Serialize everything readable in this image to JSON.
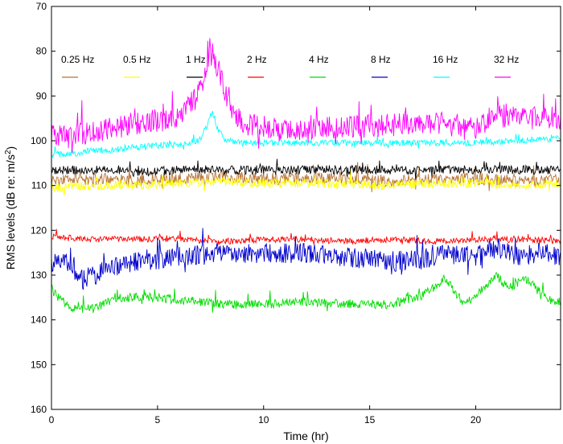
{
  "chart_data": {
    "type": "line",
    "title": "",
    "xlabel": "Time (hr)",
    "ylabel": "RMS levels (dB re: m/s",
    "ylabel_sup": "2",
    "ylabel_suffix": ")",
    "xlim": [
      0,
      24
    ],
    "ylim": [
      70,
      160
    ],
    "y_inverted": true,
    "grid": false,
    "legend_placement": "top, inside plot, single row",
    "xticks": [
      0,
      5,
      10,
      15,
      20
    ],
    "yticks": [
      70,
      80,
      90,
      100,
      110,
      120,
      130,
      140,
      150,
      160
    ],
    "series": [
      {
        "name": "0.25 Hz",
        "color": "#b87333",
        "x": [
          0,
          2,
          4,
          6,
          8,
          10,
          12,
          14,
          16,
          18,
          20,
          22,
          24
        ],
        "values": [
          109,
          108.5,
          109,
          108.5,
          108,
          108.5,
          108.5,
          108.5,
          109,
          108.5,
          108.5,
          109,
          108.5
        ],
        "noise": 1.3
      },
      {
        "name": "0.5 Hz",
        "color": "#ffff00",
        "x": [
          0,
          2,
          4,
          6,
          8,
          10,
          12,
          14,
          16,
          18,
          20,
          22,
          24
        ],
        "values": [
          110.5,
          110,
          110,
          109.5,
          109,
          109.5,
          109.5,
          109.5,
          110,
          109.5,
          109.5,
          110,
          109.5
        ],
        "noise": 1.0
      },
      {
        "name": "1 Hz",
        "color": "#000000",
        "x": [
          0,
          2,
          4,
          6,
          8,
          10,
          12,
          14,
          16,
          18,
          20,
          22,
          24
        ],
        "values": [
          106.5,
          106.5,
          107,
          106.5,
          106.5,
          106.5,
          106.5,
          106.5,
          106.5,
          106.5,
          106.5,
          106.5,
          106.5
        ],
        "noise": 1.0
      },
      {
        "name": "2 Hz",
        "color": "#ff0000",
        "x": [
          0,
          2,
          4,
          6,
          8,
          10,
          12,
          14,
          16,
          18,
          20,
          22,
          24
        ],
        "values": [
          121.5,
          122,
          122,
          122,
          122.5,
          122,
          122,
          122.5,
          122,
          122.5,
          122,
          122,
          122.5
        ],
        "noise": 0.7
      },
      {
        "name": "4 Hz",
        "color": "#00dd00",
        "x": [
          0,
          0.3,
          1,
          2,
          3,
          5,
          8,
          10,
          12,
          14,
          16,
          17.5,
          18.5,
          19.5,
          21,
          21.5,
          22.5,
          23.5,
          24
        ],
        "values": [
          133,
          135,
          137.5,
          137.5,
          135,
          135,
          136.5,
          136.5,
          136,
          136.5,
          136.5,
          134.5,
          131,
          136.5,
          130,
          133,
          131,
          135.5,
          136
        ],
        "noise": 1.0
      },
      {
        "name": "8 Hz",
        "color": "#0000cc",
        "x": [
          0,
          0.5,
          1.5,
          2.5,
          4,
          6,
          8,
          10,
          12,
          14,
          16,
          18,
          19,
          20,
          21,
          22,
          23,
          24
        ],
        "values": [
          127,
          126,
          131,
          129,
          127,
          126,
          125,
          125,
          125,
          126,
          127,
          126,
          125,
          126,
          124,
          126,
          125,
          126
        ],
        "noise": 2.3
      },
      {
        "name": "16 Hz",
        "color": "#00ffff",
        "x": [
          0,
          1,
          2,
          3,
          4,
          5,
          6,
          7,
          7.4,
          7.6,
          7.8,
          8.2,
          9,
          10,
          12,
          14,
          16,
          18,
          20,
          22,
          24
        ],
        "values": [
          103,
          103,
          102,
          102,
          101.5,
          101,
          101,
          100,
          96,
          93,
          97,
          100,
          100.5,
          100.5,
          100.5,
          100.5,
          100.5,
          100.5,
          100.5,
          100,
          99.5
        ],
        "noise": 0.7
      },
      {
        "name": "32 Hz",
        "color": "#ff00ff",
        "x": [
          0,
          1,
          2,
          3,
          4,
          5,
          6,
          7,
          7.5,
          8,
          8.5,
          9,
          10,
          11,
          12,
          13,
          14,
          16,
          18,
          20,
          21,
          22,
          23,
          24
        ],
        "values": [
          99,
          99,
          98,
          97,
          96,
          95.5,
          95,
          89,
          79,
          86,
          94,
          96,
          97,
          98,
          98,
          97,
          97,
          96.5,
          96,
          97,
          94,
          95,
          95,
          95
        ],
        "noise": 2.6
      }
    ]
  }
}
